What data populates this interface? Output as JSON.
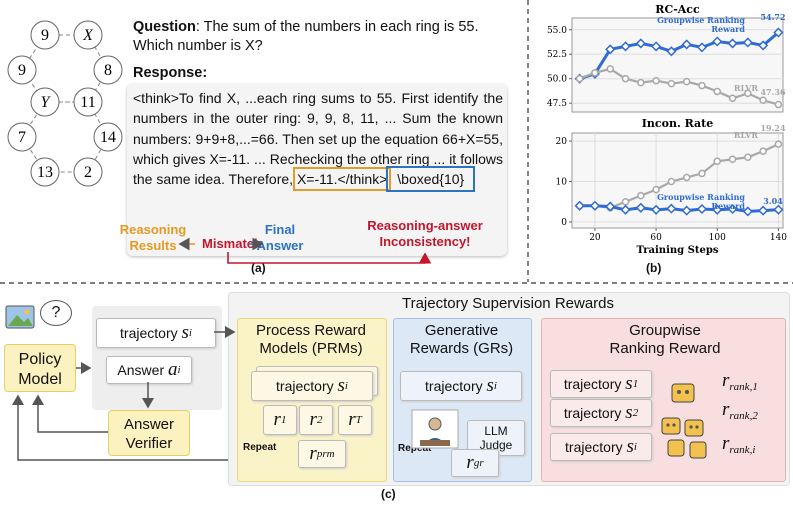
{
  "panel_a": {
    "ring_nodes": [
      "9",
      "X",
      "9",
      "8",
      "Y",
      "11",
      "7",
      "14",
      "13",
      "2"
    ],
    "question_label": "Question",
    "question": ": The sum of the numbers in each ring is 55. Which number is X?",
    "response_label": "Response",
    "response": "<think>To find X, ...each ring sums to 55. First identify the numbers in the outer ring: 9, 9, 8, 11, ... Sum the known numbers: 9+9+8,...=66. Then set up the equation 66+X=55, which gives X=-11. ... Rechecking the other ring ... it follows the same idea. Therefore,",
    "response_result": "X=-11.</think>",
    "response_answer": "\\boxed{10}",
    "reasoning_results": "Reasoning Results",
    "mismatch": "Mismatch",
    "final_answer": "Final Answer",
    "inconsistency": "Reasoning-answer Inconsistency!",
    "caption": "(a)"
  },
  "chart_data": [
    {
      "type": "line",
      "title": "RC-Acc",
      "x": [
        10,
        20,
        30,
        40,
        50,
        60,
        70,
        80,
        90,
        100,
        110,
        120,
        130,
        140
      ],
      "series": [
        {
          "name": "Groupwise Ranking Reward",
          "color": "#2f6bd3",
          "values": [
            50.0,
            50.5,
            53.0,
            53.3,
            53.6,
            53.3,
            52.8,
            53.5,
            53.2,
            53.8,
            53.6,
            53.7,
            53.4,
            54.72
          ]
        },
        {
          "name": "RLVR",
          "color": "#a8a8a8",
          "values": [
            50.0,
            50.6,
            51.0,
            50.0,
            49.6,
            49.8,
            49.5,
            49.7,
            49.3,
            48.7,
            48.0,
            48.5,
            47.8,
            47.36
          ]
        }
      ],
      "xlim": [
        5,
        143
      ],
      "ylim": [
        46.6,
        56.2
      ],
      "yticks": [
        47.5,
        {
          "value": 50,
          "label": "50.0"
        },
        52.5,
        {
          "value": 55,
          "label": "55.0"
        }
      ],
      "grid": true
    },
    {
      "type": "line",
      "title": "Incon. Rate",
      "x_label": "Training Steps",
      "x": [
        10,
        20,
        30,
        40,
        50,
        60,
        70,
        80,
        90,
        100,
        110,
        120,
        130,
        140
      ],
      "series": [
        {
          "name": "RLVR",
          "color": "#a8a8a8",
          "values": [
            4.0,
            4.0,
            3.5,
            5.0,
            6.5,
            8.0,
            10.0,
            11.0,
            12.0,
            15.0,
            15.5,
            16.0,
            17.5,
            19.24
          ]
        },
        {
          "name": "Groupwise Ranking Reward",
          "color": "#2f6bd3",
          "values": [
            4.0,
            4.0,
            3.8,
            3.0,
            3.5,
            3.0,
            3.3,
            2.8,
            3.2,
            3.0,
            3.2,
            2.6,
            2.8,
            3.04
          ]
        }
      ],
      "xlim": [
        5,
        143
      ],
      "ylim": [
        -1.5,
        22
      ],
      "xticks": [
        20,
        60,
        100,
        140
      ],
      "yticks": [
        0,
        10,
        20
      ],
      "grid": true
    }
  ],
  "panel_b_caption": "(b)",
  "panel_c": {
    "title": "Trajectory Supervision Rewards",
    "question_icon": "?",
    "policy_model": "Policy Model",
    "trajectory": {
      "text": "trajectory",
      "sym": "s",
      "sub": "i"
    },
    "answer": {
      "text": "Answer",
      "sym": "a",
      "sub": "i"
    },
    "answer_verifier": "Answer Verifier",
    "prm": {
      "title": "Process Reward Models (PRMs)",
      "trajectory": {
        "text": "trajectory",
        "sym": "s",
        "sub": "i"
      },
      "step_rewards": [
        {
          "sym": "r",
          "sub": "1"
        },
        {
          "sym": "r",
          "sub": "2"
        },
        {
          "sym": "r",
          "sub": "T"
        }
      ],
      "repeat": "Repeat",
      "reward": {
        "sym": "r",
        "sub": "prm"
      }
    },
    "gr": {
      "title": "Generative Rewards (GRs)",
      "trajectory": {
        "text": "trajectory",
        "sym": "s",
        "sub": "i"
      },
      "judge": "LLM Judge",
      "repeat": "Repeat",
      "reward": {
        "sym": "r",
        "sub": "gr"
      }
    },
    "groupwise": {
      "title": "Groupwise Ranking Reward",
      "trajectories": [
        {
          "text": "trajectory",
          "sym": "s",
          "sub": "1"
        },
        {
          "text": "trajectory",
          "sym": "s",
          "sub": "2"
        },
        {
          "text": "trajectory",
          "sym": "s",
          "sub": "i"
        }
      ],
      "rewards": [
        {
          "sym": "r",
          "sub": "rank,1"
        },
        {
          "sym": "r",
          "sub": "rank,2"
        },
        {
          "sym": "r",
          "sub": "rank,i"
        }
      ]
    },
    "caption": "(c)"
  }
}
